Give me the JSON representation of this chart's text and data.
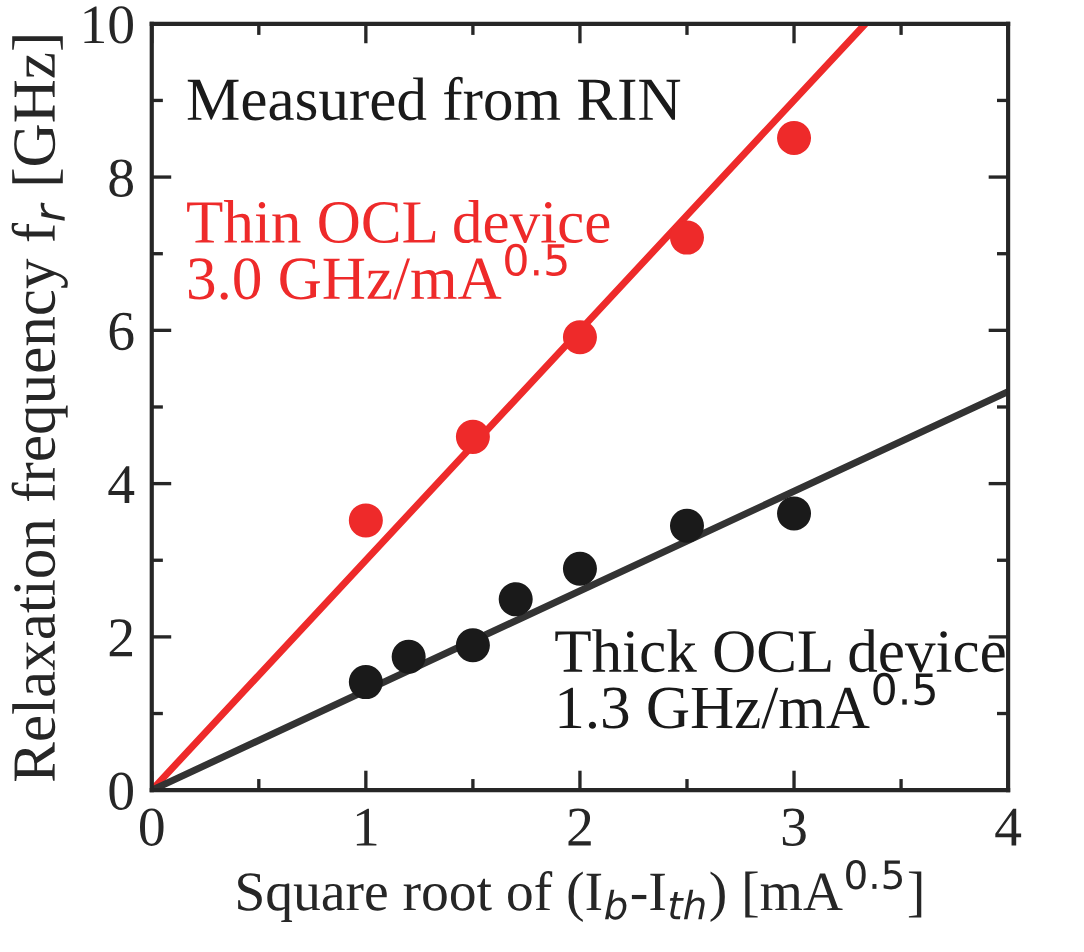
{
  "chart_data": {
    "type": "scatter",
    "xlabel": "Square root of (I$_{b}$-I$_{th}$) [mA$^{0.5}$]",
    "ylabel": "Relaxation frequency f$_{r}$ [GHz]",
    "annotations": [
      "Measured from RIN",
      "Thin OCL device\n3.0 GHz/mA$^{0.5}$",
      "Thick OCL device\n1.3 GHz/mA$^{0.5}$"
    ],
    "series": [
      {
        "color": "#ee2a2a",
        "x": [
          1,
          1.5,
          2,
          2.5,
          3
        ],
        "values": [
          3.52,
          4.61,
          5.91,
          7.21,
          8.51
        ]
      },
      {
        "color": "#1a1a1a",
        "x": [
          1,
          1.2,
          1.5,
          1.7,
          2,
          2.5,
          3
        ],
        "values": [
          1.41,
          1.74,
          1.89,
          2.49,
          2.89,
          3.45,
          3.61
        ]
      },
      {
        "type": "line",
        "marker": "none",
        "color": "#ee2a2a",
        "x": [
          0,
          3.333
        ],
        "values": [
          0,
          10
        ]
      },
      {
        "type": "line",
        "marker": "none",
        "color": "#333333",
        "x": [
          0,
          4
        ],
        "values": [
          0,
          5.2
        ]
      }
    ],
    "xlim": [
      0,
      4
    ],
    "ylim": [
      0,
      10
    ],
    "xticks": [
      0,
      1,
      2,
      3,
      4
    ],
    "yticks": [
      0,
      2,
      4,
      6,
      8,
      10
    ],
    "grid": false,
    "legend": false,
    "marker": "circle"
  }
}
